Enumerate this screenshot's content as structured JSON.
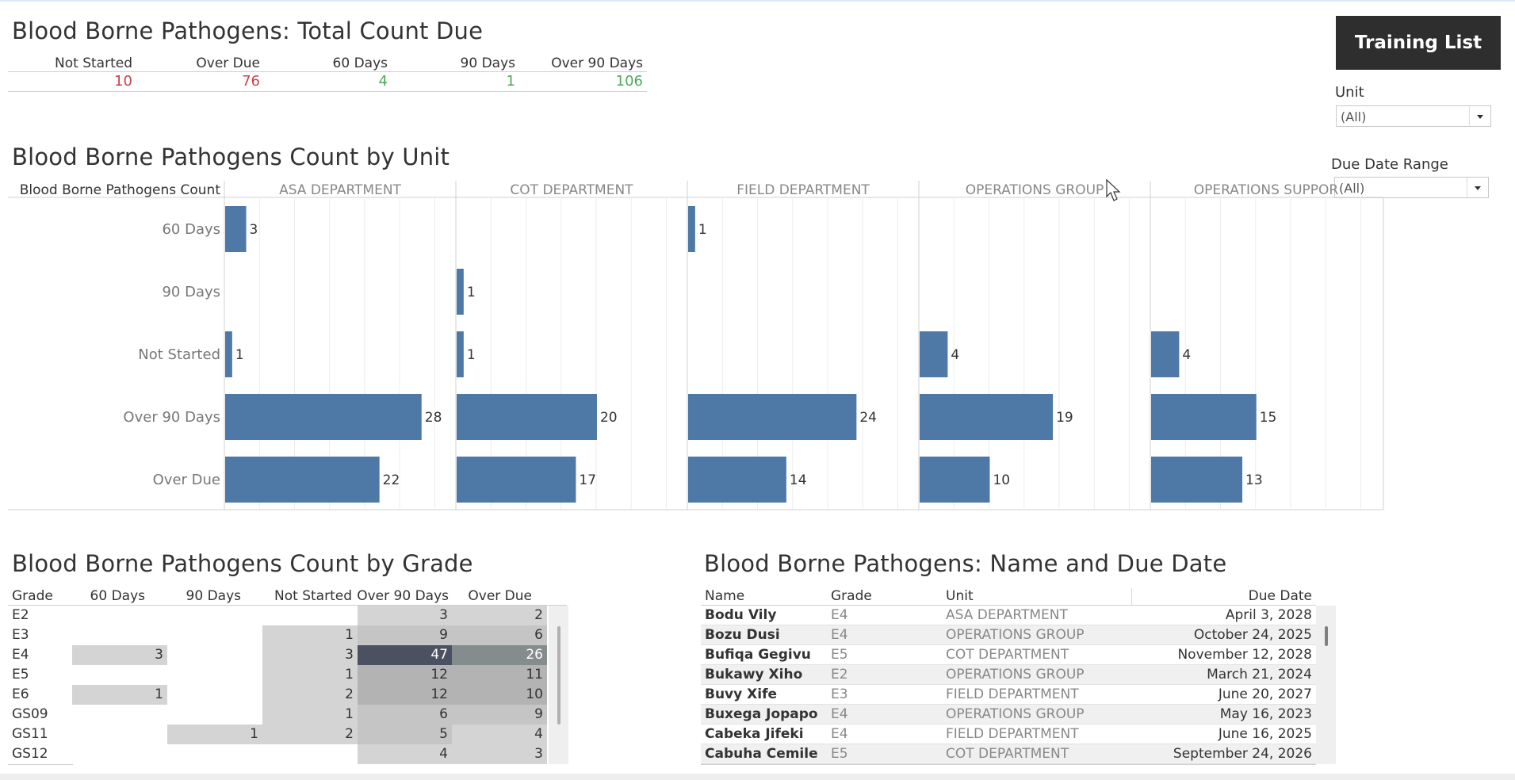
{
  "summary": {
    "title": "Blood Borne Pathogens: Total Count Due",
    "columns": [
      {
        "label": "Not Started",
        "value": "10",
        "color": "#c8424b"
      },
      {
        "label": "Over Due",
        "value": "76",
        "color": "#c8424b"
      },
      {
        "label": "60 Days",
        "value": "4",
        "color": "#4fa85a"
      },
      {
        "label": "90 Days",
        "value": "1",
        "color": "#4fa85a"
      },
      {
        "label": "Over 90 Days",
        "value": "106",
        "color": "#4fa85a"
      }
    ]
  },
  "training_button": "Training List",
  "filters": {
    "unit": {
      "label": "Unit",
      "value": "(All)"
    },
    "due_date": {
      "label": "Due Date Range",
      "value": "(All)"
    }
  },
  "unit_chart": {
    "title": "Blood Borne Pathogens Count by Unit",
    "row_header": "Blood Borne Pathogens Count"
  },
  "grade_table": {
    "title": "Blood Borne Pathogens Count by Grade",
    "columns": [
      "Grade",
      "60 Days",
      "90 Days",
      "Not Started",
      "Over 90 Days",
      "Over Due"
    ],
    "rows": [
      {
        "grade": "E2",
        "values": [
          null,
          null,
          null,
          3,
          2
        ]
      },
      {
        "grade": "E3",
        "values": [
          null,
          null,
          1,
          9,
          6
        ]
      },
      {
        "grade": "E4",
        "values": [
          3,
          null,
          3,
          47,
          26
        ]
      },
      {
        "grade": "E5",
        "values": [
          null,
          null,
          1,
          12,
          11
        ]
      },
      {
        "grade": "E6",
        "values": [
          1,
          null,
          2,
          12,
          10
        ]
      },
      {
        "grade": "GS09",
        "values": [
          null,
          null,
          1,
          6,
          9
        ]
      },
      {
        "grade": "GS11",
        "values": [
          null,
          1,
          2,
          5,
          4
        ]
      },
      {
        "grade": "GS12",
        "values": [
          null,
          null,
          null,
          4,
          3
        ]
      }
    ]
  },
  "name_table": {
    "title": "Blood Borne Pathogens: Name and Due Date",
    "columns": [
      "Name",
      "Grade",
      "Unit",
      "Due Date"
    ],
    "rows": [
      {
        "name": "Bodu Vily",
        "grade": "E4",
        "unit": "ASA DEPARTMENT",
        "due": "April 3, 2028"
      },
      {
        "name": "Bozu Dusi",
        "grade": "E4",
        "unit": "OPERATIONS GROUP",
        "due": "October 24, 2025"
      },
      {
        "name": "Bufiqa Gegivu",
        "grade": "E5",
        "unit": "COT DEPARTMENT",
        "due": "November 12, 2028"
      },
      {
        "name": "Bukawy Xiho",
        "grade": "E2",
        "unit": "OPERATIONS GROUP",
        "due": "March 21, 2024"
      },
      {
        "name": "Buvy Xife",
        "grade": "E3",
        "unit": "FIELD DEPARTMENT",
        "due": "June 20, 2027"
      },
      {
        "name": "Buxega Jopapo",
        "grade": "E4",
        "unit": "OPERATIONS GROUP",
        "due": "May 16, 2023"
      },
      {
        "name": "Cabeka Jifeki",
        "grade": "E4",
        "unit": "FIELD DEPARTMENT",
        "due": "June 16, 2025"
      },
      {
        "name": "Cabuha Cemile",
        "grade": "E5",
        "unit": "COT DEPARTMENT",
        "due": "September 24, 2026"
      }
    ]
  },
  "chart_data": {
    "type": "bar",
    "title": "Blood Borne Pathogens Count by Unit",
    "orientation": "horizontal",
    "categories": [
      "60 Days",
      "90 Days",
      "Not Started",
      "Over 90 Days",
      "Over Due"
    ],
    "panels": [
      "ASA DEPARTMENT",
      "COT DEPARTMENT",
      "FIELD DEPARTMENT",
      "OPERATIONS GROUP",
      "OPERATIONS SUPPOR"
    ],
    "series": [
      {
        "name": "ASA DEPARTMENT",
        "values": [
          3,
          null,
          1,
          28,
          22
        ]
      },
      {
        "name": "COT DEPARTMENT",
        "values": [
          null,
          1,
          1,
          20,
          17
        ]
      },
      {
        "name": "FIELD DEPARTMENT",
        "values": [
          1,
          null,
          null,
          24,
          14
        ]
      },
      {
        "name": "OPERATIONS GROUP",
        "values": [
          null,
          null,
          4,
          19,
          10
        ]
      },
      {
        "name": "OPERATIONS SUPPOR",
        "values": [
          null,
          null,
          4,
          15,
          13
        ]
      }
    ],
    "xlim": [
      0,
      33
    ],
    "bar_color": "#4e79a7",
    "grid": true
  }
}
